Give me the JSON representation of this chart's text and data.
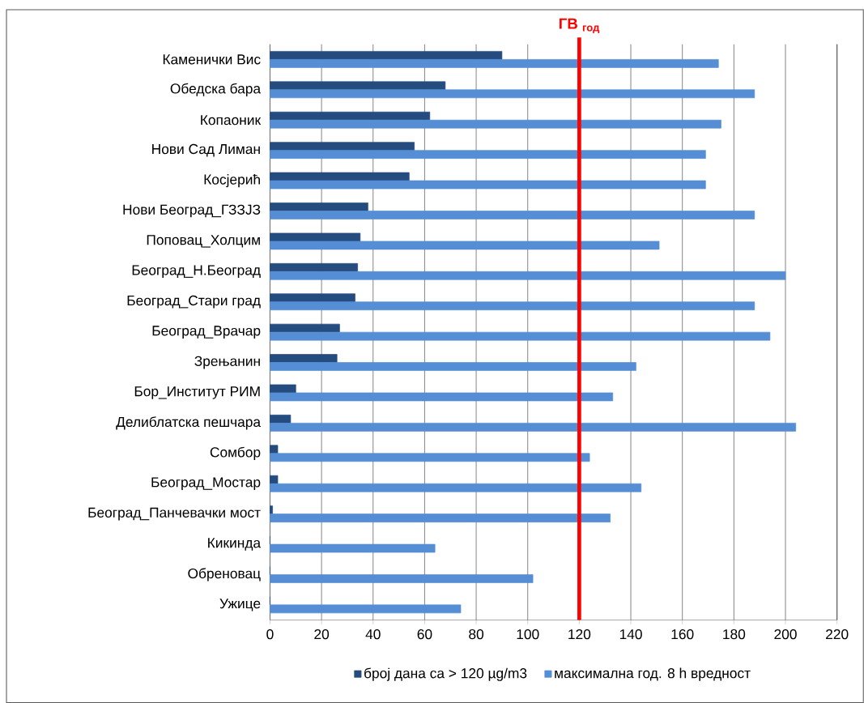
{
  "chart_data": {
    "type": "bar",
    "orientation": "horizontal",
    "categories": [
      "Каменички Вис",
      "Обедска бара",
      "Копаоник",
      "Нови Сад Лиман",
      "Косјерић",
      "Нови Београд_ГЗЗЈЗ",
      "Поповац_Холцим",
      "Београд_Н.Београд",
      "Београд_Стари град",
      "Београд_Врачар",
      "Зрењанин",
      "Бор_Институт РИМ",
      "Делиблатска пешчара",
      "Сомбор",
      "Београд_Мостар",
      "Београд_Панчевачки мост",
      "Кикинда",
      "Обреновац",
      "Ужице"
    ],
    "series": [
      {
        "name": "број дана са  > 120 µg/m3",
        "color": "#254c7f",
        "values": [
          90,
          68,
          62,
          56,
          54,
          38,
          35,
          34,
          33,
          27,
          26,
          10,
          8,
          3,
          3,
          1,
          0,
          0,
          0
        ]
      },
      {
        "name": "максимална  год. 8 h вредност",
        "color": "#558ed5",
        "values": [
          174,
          188,
          175,
          169,
          169,
          188,
          151,
          200,
          188,
          194,
          142,
          133,
          204,
          124,
          144,
          132,
          64,
          102,
          74
        ]
      }
    ],
    "xlim": [
      0,
      220
    ],
    "xticks": [
      0,
      20,
      40,
      60,
      80,
      100,
      120,
      140,
      160,
      180,
      200,
      220
    ],
    "grid": "x",
    "legend": "bottom",
    "ref_lines": [
      {
        "axis": "x",
        "value": 120,
        "label": "ГВ $_{год}$",
        "color": "#ff0000"
      }
    ]
  }
}
